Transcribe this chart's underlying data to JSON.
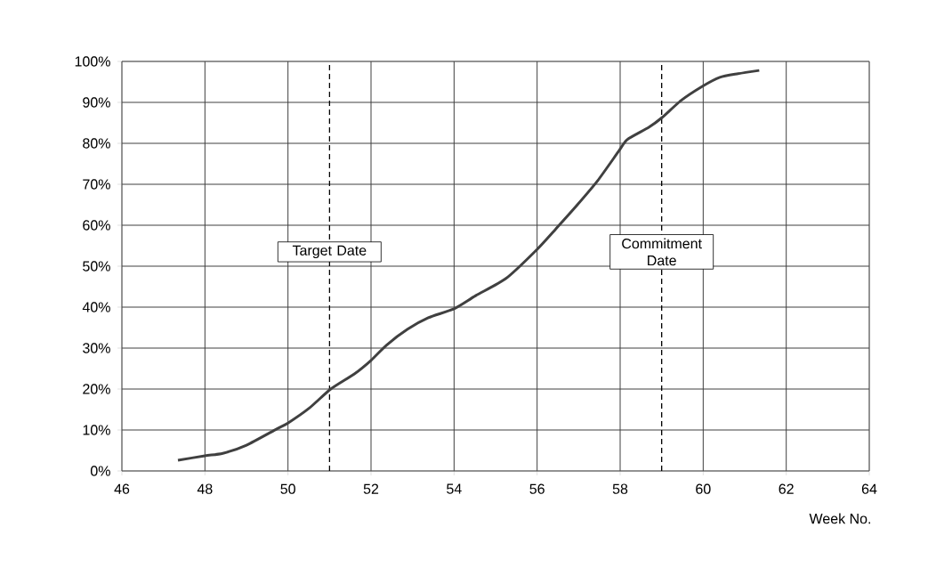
{
  "chart_data": {
    "type": "line",
    "xlabel": "Week No.",
    "x": [
      47.35,
      48,
      48.43,
      49,
      49.72,
      50,
      50.52,
      51.03,
      51.6,
      52,
      52.37,
      52.88,
      53.38,
      54,
      54.52,
      55.25,
      55.96,
      56.45,
      56.97,
      57.46,
      57.96,
      58.17,
      58.69,
      59.01,
      59.46,
      59.98,
      60.4,
      60.84,
      61.35
    ],
    "values": [
      2.6,
      3.7,
      4.3,
      6.3,
      10.2,
      11.7,
      15.4,
      20,
      23.7,
      27,
      30.7,
      34.6,
      37.4,
      39.6,
      42.8,
      47,
      53.7,
      59.1,
      65,
      70.9,
      78,
      80.9,
      83.9,
      86.3,
      90.4,
      93.9,
      96.1,
      97,
      97.8
    ],
    "color": "#404040",
    "xlim": [
      46,
      64
    ],
    "xticks": [
      46,
      48,
      50,
      52,
      54,
      56,
      58,
      60,
      62,
      64
    ],
    "ylim": [
      0,
      100
    ],
    "yticks": [
      {
        "value": 0,
        "label": "0%"
      },
      {
        "value": 10,
        "label": "10%"
      },
      {
        "value": 20,
        "label": "20%"
      },
      {
        "value": 30,
        "label": "30%"
      },
      {
        "value": 40,
        "label": "40%"
      },
      {
        "value": 50,
        "label": "50%"
      },
      {
        "value": 60,
        "label": "60%"
      },
      {
        "value": 70,
        "label": "70%"
      },
      {
        "value": 80,
        "label": "80%"
      },
      {
        "value": 90,
        "label": "90%"
      },
      {
        "value": 100,
        "label": "100%"
      }
    ],
    "grid": true,
    "ref_lines": [
      {
        "axis": "x",
        "value": 51,
        "label": "Target Date",
        "line_style": "dashed",
        "color": "#000000"
      },
      {
        "axis": "x",
        "value": 59,
        "label": "Commitment Date",
        "line_style": "dashed",
        "color": "#000000"
      }
    ]
  }
}
